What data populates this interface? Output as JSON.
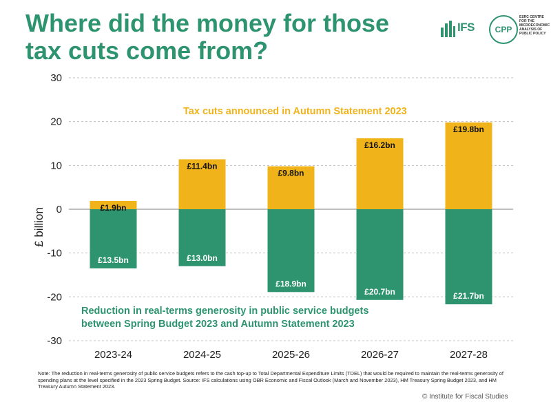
{
  "title": "Where did the money for those tax cuts come from?",
  "logos": {
    "ifs": "IFS",
    "cpp_mark": "CPP",
    "cpp_text": "ESRC CENTRE FOR THE MICROECONOMIC ANALYSIS OF PUBLIC POLICY"
  },
  "colors": {
    "tax_cuts": "#f0b41a",
    "reduction": "#2e9470",
    "title": "#2e9470"
  },
  "chart_data": {
    "type": "bar",
    "stacked": true,
    "categories": [
      "2023-24",
      "2024-25",
      "2025-26",
      "2026-27",
      "2027-28"
    ],
    "series": [
      {
        "name": "Tax cuts announced in Autumn Statement 2023",
        "values": [
          1.9,
          11.4,
          9.8,
          16.2,
          19.8
        ],
        "labels": [
          "£1.9bn",
          "£11.4bn",
          "£9.8bn",
          "£16.2bn",
          "£19.8bn"
        ]
      },
      {
        "name": "Reduction in real-terms generosity in public service budgets between Spring Budget 2023 and Autumn Statement 2023",
        "values": [
          -13.5,
          -13.0,
          -18.9,
          -20.7,
          -21.7
        ],
        "labels": [
          "£13.5bn",
          "£13.0bn",
          "£18.9bn",
          "£20.7bn",
          "£21.7bn"
        ]
      }
    ],
    "ylabel": "£ billion",
    "ylim": [
      -30,
      30
    ],
    "yticks": [
      "30",
      "20",
      "10",
      "0",
      "-10",
      "-20",
      "-30"
    ],
    "ytick_values": [
      30,
      20,
      10,
      0,
      -10,
      -20,
      -30
    ],
    "annotations": {
      "tax_cuts": "Tax cuts announced in Autumn Statement 2023",
      "reduction_line1": "Reduction in real-terms generosity in public service budgets",
      "reduction_line2": "between Spring Budget 2023 and Autumn Statement 2023"
    },
    "grid": true
  },
  "note": "Note: The reduction in real-terms generosity of public service budgets refers to the cash top-up to Total Departmental Expenditure Limits (TDEL) that would be required to maintain the real-terms generosity of spending plans at the level specified in the 2023 Spring Budget. Source: IFS calculations using OBR Economic and Fiscal Outlook (March and November 2023), HM Treasury Spring Budget 2023, and HM Treasury Autumn Statement 2023.",
  "copyright": "© Institute for Fiscal Studies"
}
